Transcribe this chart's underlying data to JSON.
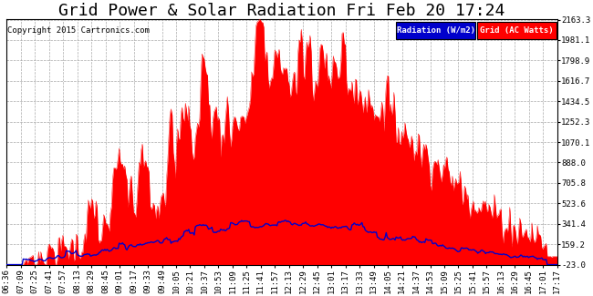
{
  "title": "Grid Power & Solar Radiation Fri Feb 20 17:24",
  "copyright": "Copyright 2015 Cartronics.com",
  "legend_radiation": "Radiation (W/m2)",
  "legend_grid": "Grid (AC Watts)",
  "ymin": -23.0,
  "ymax": 2163.3,
  "yticks": [
    2163.3,
    1981.1,
    1798.9,
    1616.7,
    1434.5,
    1252.3,
    1070.1,
    888.0,
    705.8,
    523.6,
    341.4,
    159.2,
    -23.0
  ],
  "xtick_labels": [
    "06:36",
    "07:09",
    "07:25",
    "07:41",
    "07:57",
    "08:13",
    "08:29",
    "08:45",
    "09:01",
    "09:17",
    "09:33",
    "09:49",
    "10:05",
    "10:21",
    "10:37",
    "10:53",
    "11:09",
    "11:25",
    "11:41",
    "11:57",
    "12:13",
    "12:29",
    "12:45",
    "13:01",
    "13:17",
    "13:33",
    "13:49",
    "14:05",
    "14:21",
    "14:37",
    "14:53",
    "15:09",
    "15:25",
    "15:41",
    "15:57",
    "16:13",
    "16:29",
    "16:45",
    "17:01",
    "17:17"
  ],
  "bg_color": "#ffffff",
  "grid_color": "#aaaaaa",
  "radiation_color": "#0000cc",
  "grid_fill_color": "#ff0000",
  "title_fontsize": 13,
  "label_fontsize": 6.5,
  "copyright_fontsize": 6.5
}
